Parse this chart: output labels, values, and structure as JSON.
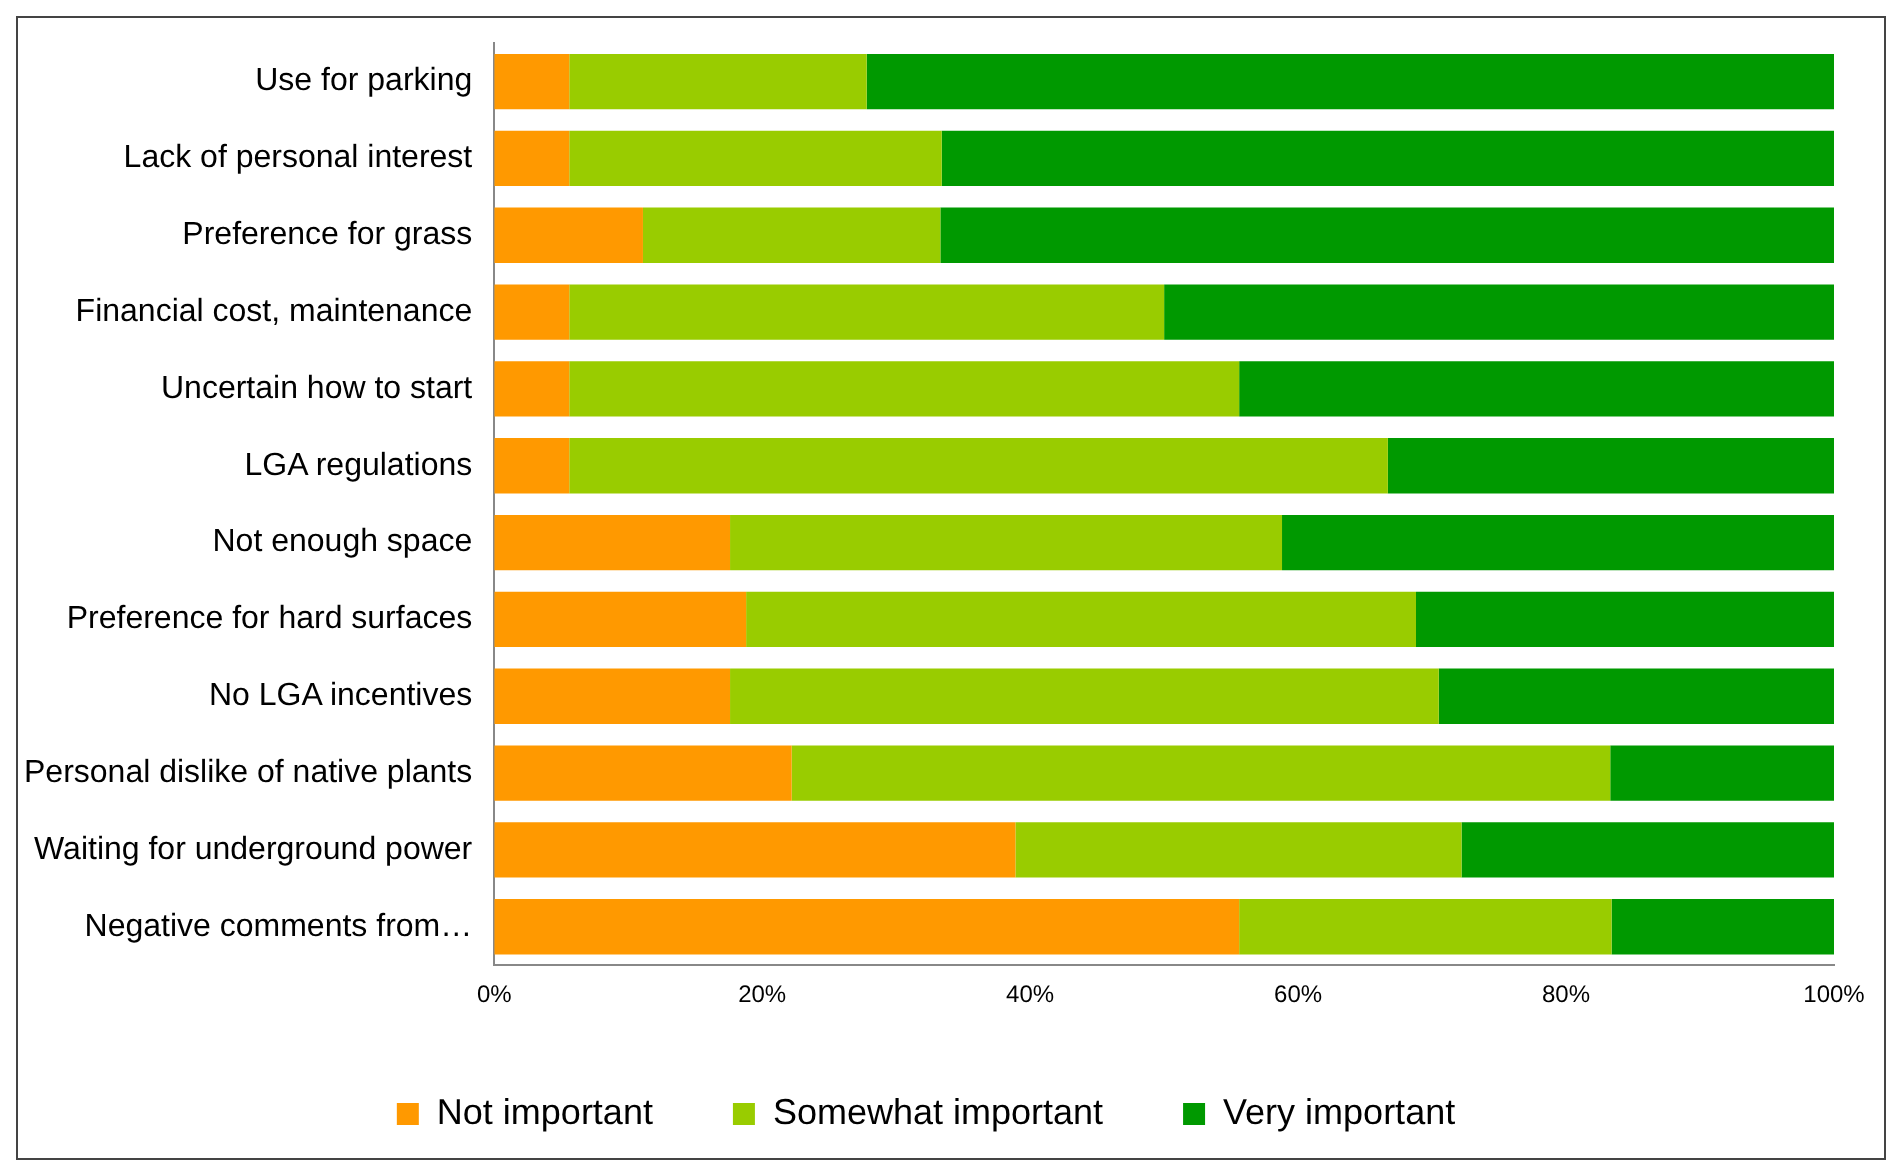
{
  "chart_data": {
    "type": "bar",
    "orientation": "horizontal",
    "stacked": true,
    "categories": [
      "Use for parking",
      "Lack of personal interest",
      "Preference for grass",
      "Financial cost, maintenance",
      "Uncertain how to start",
      "LGA regulations",
      "Not enough space",
      "Preference for hard surfaces",
      "No LGA incentives",
      "Personal dislike of native plants",
      "Waiting for underground power",
      "Negative comments from…"
    ],
    "series": [
      {
        "name": "Not important",
        "color": "#ff9900",
        "values": [
          5.6,
          5.6,
          11.1,
          5.6,
          5.6,
          5.6,
          17.6,
          18.8,
          17.6,
          22.2,
          38.9,
          55.6
        ]
      },
      {
        "name": "Somewhat important",
        "color": "#99cc00",
        "values": [
          22.2,
          27.8,
          22.2,
          44.4,
          50,
          61.1,
          41.2,
          50,
          52.9,
          61.1,
          33.3,
          27.8
        ]
      },
      {
        "name": "Very important",
        "color": "#009900",
        "values": [
          72.2,
          66.6,
          66.7,
          50,
          44.4,
          33.3,
          41.2,
          31.2,
          29.5,
          16.7,
          27.8,
          16.6
        ]
      }
    ],
    "xlim": [
      0,
      100
    ],
    "xticks": [
      {
        "value": 0,
        "label": "0%"
      },
      {
        "value": 20,
        "label": "20%"
      },
      {
        "value": 40,
        "label": "40%"
      },
      {
        "value": 60,
        "label": "60%"
      },
      {
        "value": 80,
        "label": "80%"
      },
      {
        "value": 100,
        "label": "100%"
      }
    ],
    "grid": false,
    "legend": "bottom"
  }
}
